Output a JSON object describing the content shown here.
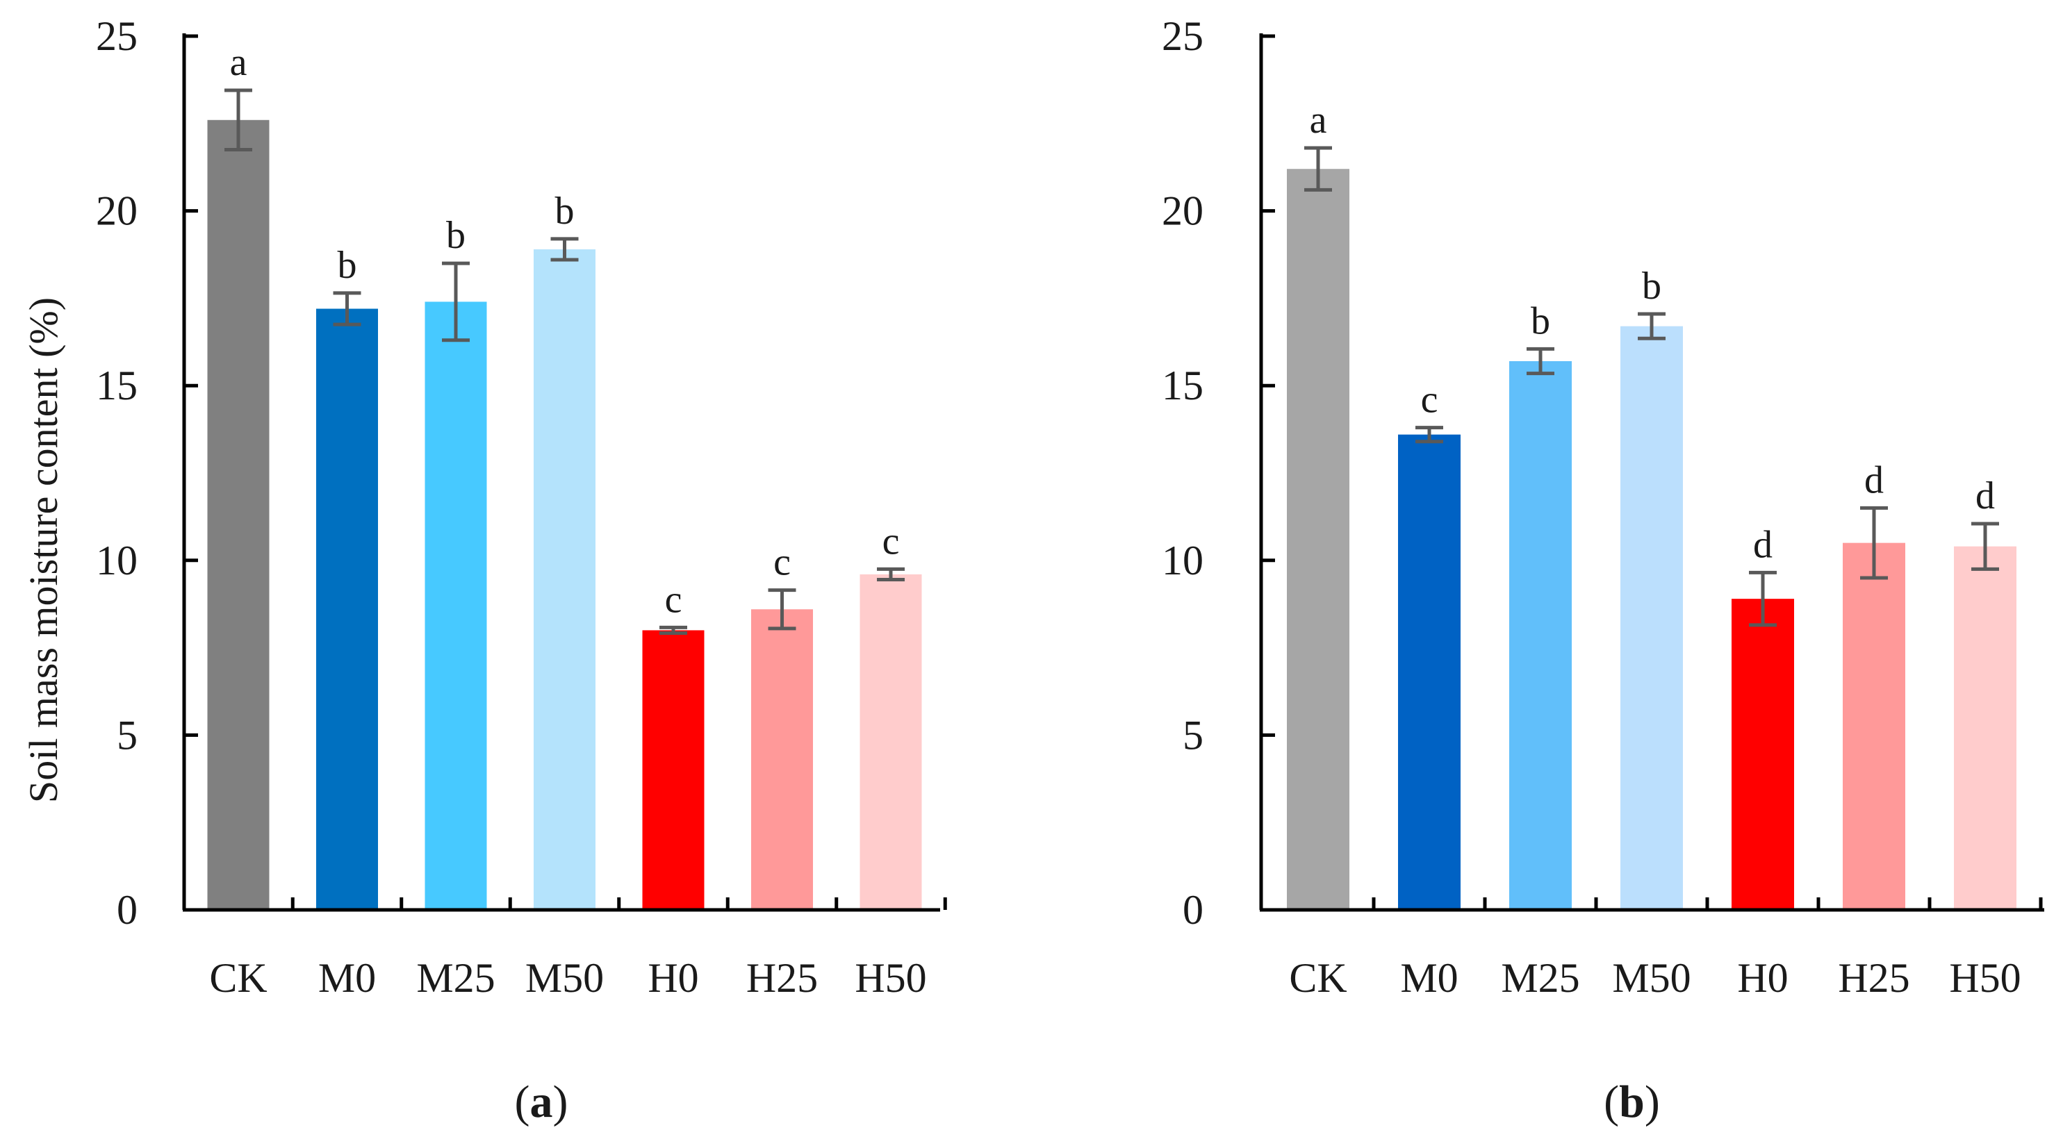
{
  "y_axis_label": "Soil mass moisture content  (%)",
  "chart_data": [
    {
      "type": "bar",
      "panel_label": "a",
      "categories": [
        "CK",
        "M0",
        "M25",
        "M50",
        "H0",
        "H25",
        "H50"
      ],
      "values": [
        22.6,
        17.2,
        17.4,
        18.9,
        8.0,
        8.6,
        9.6
      ],
      "errors": [
        0.85,
        0.45,
        1.1,
        0.3,
        0.08,
        0.55,
        0.15
      ],
      "letters": [
        "a",
        "b",
        "b",
        "b",
        "c",
        "c",
        "c"
      ],
      "colors": [
        "#808080",
        "#0070C0",
        "#47C9FF",
        "#B4E3FC",
        "#FF0000",
        "#FF9999",
        "#FFCCCC"
      ],
      "ylabel": "Soil mass moisture content  (%)",
      "ylim": [
        0,
        25
      ],
      "yticks": [
        0,
        5,
        10,
        15,
        20,
        25
      ],
      "grid": false
    },
    {
      "type": "bar",
      "panel_label": "b",
      "categories": [
        "CK",
        "M0",
        "M25",
        "M50",
        "H0",
        "H25",
        "H50"
      ],
      "values": [
        21.2,
        13.6,
        15.7,
        16.7,
        8.9,
        10.5,
        10.4
      ],
      "errors": [
        0.6,
        0.2,
        0.35,
        0.35,
        0.75,
        1.0,
        0.65
      ],
      "letters": [
        "a",
        "c",
        "b",
        "b",
        "d",
        "d",
        "d"
      ],
      "colors": [
        "#A6A6A6",
        "#0062C4",
        "#61BFFA",
        "#BBDFFD",
        "#FF0000",
        "#FF9999",
        "#FFCCCC"
      ],
      "ylabel": "",
      "ylim": [
        0,
        25
      ],
      "yticks": [
        0,
        5,
        10,
        15,
        20,
        25
      ],
      "grid": false
    }
  ]
}
